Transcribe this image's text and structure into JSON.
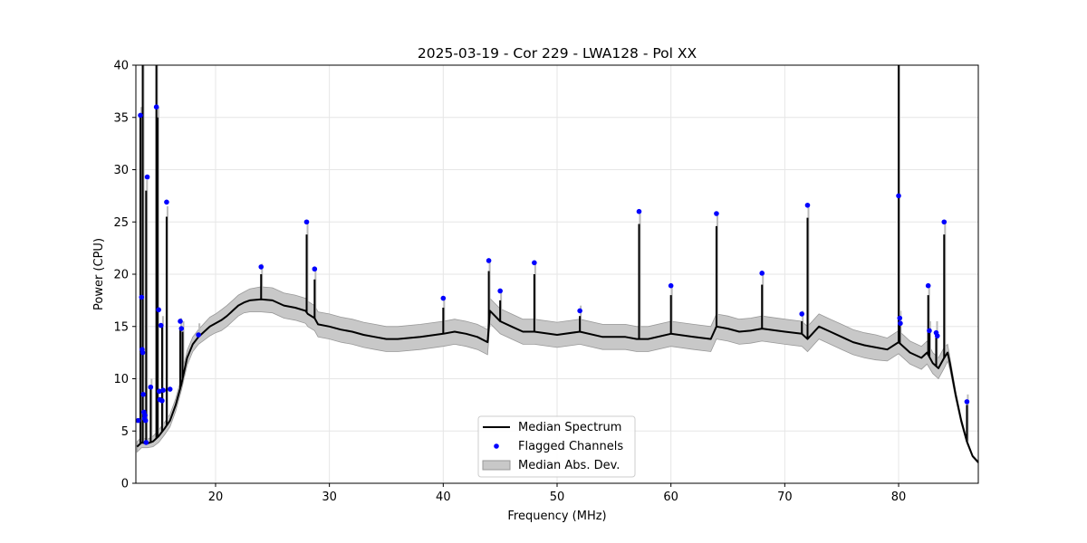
{
  "chart_data": {
    "type": "line",
    "title": "2025-03-19 - Cor 229 - LWA128 - Pol XX",
    "xlabel": "Frequency (MHz)",
    "ylabel": "Power (CPU)",
    "xlim": [
      13.0,
      87.0
    ],
    "ylim": [
      0,
      40
    ],
    "xticks": [
      20,
      30,
      40,
      50,
      60,
      70,
      80
    ],
    "yticks": [
      0,
      5,
      10,
      15,
      20,
      25,
      30,
      35,
      40
    ],
    "grid": true,
    "legend_position": "bottom-center",
    "colors": {
      "median": "#000000",
      "flagged": "#0000ff",
      "mad_fill": "#c8c8c8",
      "mad_edge": "#999999"
    },
    "legend": [
      {
        "label": "Median Spectrum",
        "marker": "line"
      },
      {
        "label": "Flagged Channels",
        "marker": "dot"
      },
      {
        "label": "Median Abs. Dev.",
        "marker": "patch"
      }
    ],
    "series": [
      {
        "name": "Median Spectrum",
        "x": [
          13.1,
          13.5,
          14.0,
          14.5,
          15.0,
          15.5,
          16.0,
          16.5,
          17.0,
          17.5,
          18.0,
          18.5,
          19.0,
          19.5,
          20.0,
          20.5,
          21.0,
          21.5,
          22.0,
          22.5,
          23.0,
          24.0,
          25.0,
          26.0,
          27.0,
          27.9,
          28.1,
          28.7,
          29.0,
          30.0,
          31.0,
          32.0,
          33.0,
          34.0,
          35.0,
          36.0,
          38.0,
          40.0,
          41.0,
          42.0,
          43.0,
          43.9,
          44.1,
          45.0,
          46.0,
          47.0,
          48.0,
          50.0,
          52.0,
          54.0,
          56.0,
          57.0,
          58.0,
          60.0,
          62.0,
          63.5,
          64.0,
          65.0,
          66.0,
          67.0,
          68.0,
          70.0,
          71.5,
          72.0,
          73.0,
          74.0,
          75.0,
          76.0,
          77.0,
          78.0,
          79.0,
          80.0,
          80.5,
          81.0,
          82.0,
          82.5,
          83.0,
          83.5,
          84.0,
          84.3,
          84.5,
          85.0,
          85.5,
          86.0,
          86.5,
          87.0
        ],
        "y": [
          3.5,
          3.9,
          3.8,
          4.0,
          4.5,
          5.2,
          6.0,
          7.5,
          9.5,
          12.0,
          13.3,
          14.0,
          14.5,
          15.0,
          15.3,
          15.6,
          16.0,
          16.5,
          17.0,
          17.3,
          17.5,
          17.6,
          17.5,
          17.0,
          16.8,
          16.5,
          16.2,
          15.8,
          15.2,
          15.0,
          14.7,
          14.5,
          14.2,
          14.0,
          13.8,
          13.8,
          14.0,
          14.3,
          14.5,
          14.3,
          14.0,
          13.5,
          16.5,
          15.5,
          15.0,
          14.5,
          14.5,
          14.2,
          14.5,
          14.0,
          14.0,
          13.8,
          13.8,
          14.3,
          14.0,
          13.8,
          15.0,
          14.8,
          14.5,
          14.6,
          14.8,
          14.5,
          14.3,
          13.8,
          15.0,
          14.5,
          14.0,
          13.5,
          13.2,
          13.0,
          12.8,
          13.5,
          13.0,
          12.5,
          12.0,
          12.5,
          11.5,
          11.0,
          12.0,
          12.5,
          11.5,
          8.5,
          6.0,
          4.0,
          2.6,
          2.0
        ],
        "mad": [
          0.5,
          0.5,
          0.4,
          0.5,
          0.6,
          0.6,
          0.6,
          0.6,
          0.6,
          0.7,
          0.7,
          0.7,
          0.8,
          0.9,
          0.9,
          1.0,
          1.0,
          1.0,
          1.0,
          1.0,
          1.1,
          1.2,
          1.2,
          1.2,
          1.2,
          1.2,
          1.2,
          1.2,
          1.2,
          1.2,
          1.2,
          1.2,
          1.2,
          1.2,
          1.2,
          1.2,
          1.2,
          1.2,
          1.2,
          1.2,
          1.2,
          1.2,
          1.2,
          1.2,
          1.2,
          1.2,
          1.2,
          1.2,
          1.2,
          1.2,
          1.2,
          1.2,
          1.2,
          1.2,
          1.2,
          1.2,
          1.2,
          1.2,
          1.2,
          1.2,
          1.2,
          1.2,
          1.2,
          1.2,
          1.2,
          1.2,
          1.2,
          1.2,
          1.2,
          1.2,
          1.1,
          1.1,
          1.1,
          1.1,
          1.1,
          1.1,
          1.0,
          1.0,
          1.0,
          0.8,
          0.6,
          0.4,
          0.3,
          0.2,
          0.1,
          0.1
        ]
      },
      {
        "name": "Median Spectrum spikes",
        "spikes": [
          [
            13.4,
            35.0
          ],
          [
            13.6,
            40.0
          ],
          [
            13.9,
            28.0
          ],
          [
            14.3,
            9.0
          ],
          [
            14.8,
            40.0
          ],
          [
            14.9,
            35.0
          ],
          [
            15.3,
            15.0
          ],
          [
            15.7,
            25.5
          ],
          [
            16.9,
            14.8
          ],
          [
            17.1,
            14.5
          ],
          [
            18.5,
            14.3
          ],
          [
            24.0,
            20.0
          ],
          [
            28.0,
            23.8
          ],
          [
            28.7,
            19.5
          ],
          [
            40.0,
            16.8
          ],
          [
            44.0,
            20.3
          ],
          [
            45.0,
            17.5
          ],
          [
            48.0,
            20.0
          ],
          [
            52.0,
            16.0
          ],
          [
            57.2,
            24.8
          ],
          [
            60.0,
            18.0
          ],
          [
            64.0,
            24.6
          ],
          [
            68.0,
            19.0
          ],
          [
            71.5,
            15.5
          ],
          [
            72.0,
            25.4
          ],
          [
            80.0,
            40.0
          ],
          [
            80.1,
            15.5
          ],
          [
            82.6,
            18.0
          ],
          [
            82.7,
            14.5
          ],
          [
            83.3,
            14.5
          ],
          [
            84.0,
            23.8
          ],
          [
            86.0,
            7.5
          ]
        ]
      },
      {
        "name": "Flagged Channels",
        "x": [
          13.2,
          13.4,
          13.5,
          13.55,
          13.6,
          13.65,
          13.7,
          13.75,
          13.8,
          13.85,
          13.9,
          14.0,
          14.3,
          14.8,
          15.0,
          15.05,
          15.1,
          15.2,
          15.3,
          15.4,
          15.7,
          16.0,
          16.9,
          17.0,
          18.5,
          24.0,
          28.0,
          28.7,
          40.0,
          44.0,
          45.0,
          48.0,
          52.0,
          57.2,
          60.0,
          64.0,
          68.0,
          71.5,
          72.0,
          80.0,
          80.1,
          80.15,
          82.6,
          82.7,
          83.3,
          83.4,
          84.0,
          86.0
        ],
        "y": [
          6.0,
          35.2,
          17.8,
          12.8,
          12.5,
          8.5,
          6.8,
          6.2,
          6.5,
          6.0,
          3.9,
          29.3,
          9.2,
          36.0,
          16.6,
          8.8,
          8.0,
          15.1,
          7.9,
          8.9,
          26.9,
          9.0,
          15.5,
          14.8,
          14.2,
          20.7,
          25.0,
          20.5,
          17.7,
          21.3,
          18.4,
          21.1,
          16.5,
          26.0,
          18.9,
          25.8,
          20.1,
          16.2,
          26.6,
          27.5,
          15.8,
          15.3,
          18.9,
          14.6,
          14.4,
          14.1,
          25.0,
          7.8
        ]
      }
    ]
  }
}
